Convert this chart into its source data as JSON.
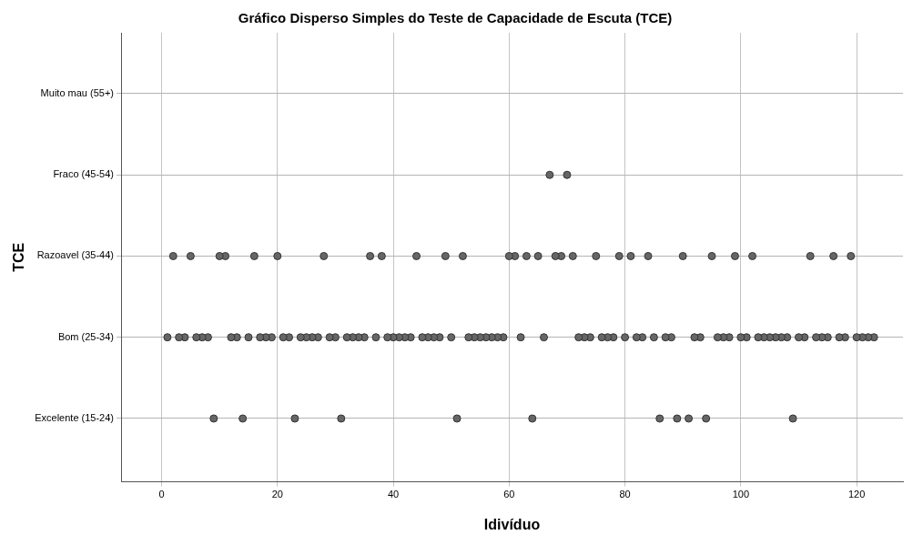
{
  "chart_data": {
    "type": "scatter",
    "orientation": "horizontal",
    "title": "Gráfico Disperso Simples do Teste de Capacidade de Escuta (TCE)",
    "xlabel": "Idivíduo",
    "ylabel": "TCE",
    "categories": [
      "Muito mau (55+)",
      "Fraco (45-54)",
      "Razoavel (35-44)",
      "Bom (25-34)",
      "Excelente (15-24)"
    ],
    "xlim": [
      -7,
      128
    ],
    "xticks": [
      0,
      20,
      40,
      60,
      80,
      100,
      120
    ],
    "grid": true,
    "legend": false,
    "marker": "circle",
    "series": [
      {
        "color": "#666666",
        "values": [
          null,
          67,
          2,
          1,
          9
        ]
      },
      {
        "color": "#666666",
        "values": [
          null,
          70,
          5,
          3,
          14
        ]
      },
      {
        "color": "#666666",
        "values": [
          null,
          null,
          10,
          4,
          23
        ]
      },
      {
        "color": "#666666",
        "values": [
          null,
          null,
          11,
          6,
          31
        ]
      },
      {
        "color": "#666666",
        "values": [
          null,
          null,
          16,
          7,
          51
        ]
      },
      {
        "color": "#666666",
        "values": [
          null,
          null,
          20,
          8,
          64
        ]
      },
      {
        "color": "#666666",
        "values": [
          null,
          null,
          28,
          12,
          86
        ]
      },
      {
        "color": "#666666",
        "values": [
          null,
          null,
          36,
          13,
          89
        ]
      },
      {
        "color": "#666666",
        "values": [
          null,
          null,
          38,
          15,
          91
        ]
      },
      {
        "color": "#666666",
        "values": [
          null,
          null,
          44,
          17,
          94
        ]
      },
      {
        "color": "#666666",
        "values": [
          null,
          null,
          49,
          18,
          109
        ]
      },
      {
        "color": "#666666",
        "values": [
          null,
          null,
          52,
          19,
          null
        ]
      },
      {
        "color": "#666666",
        "values": [
          null,
          null,
          60,
          21,
          null
        ]
      },
      {
        "color": "#666666",
        "values": [
          null,
          null,
          61,
          22,
          null
        ]
      },
      {
        "color": "#666666",
        "values": [
          null,
          null,
          63,
          24,
          null
        ]
      },
      {
        "color": "#666666",
        "values": [
          null,
          null,
          65,
          25,
          null
        ]
      },
      {
        "color": "#666666",
        "values": [
          null,
          null,
          68,
          26,
          null
        ]
      },
      {
        "color": "#666666",
        "values": [
          null,
          null,
          69,
          27,
          null
        ]
      },
      {
        "color": "#666666",
        "values": [
          null,
          null,
          71,
          29,
          null
        ]
      },
      {
        "color": "#666666",
        "values": [
          null,
          null,
          75,
          30,
          null
        ]
      },
      {
        "color": "#666666",
        "values": [
          null,
          null,
          79,
          32,
          null
        ]
      },
      {
        "color": "#666666",
        "values": [
          null,
          null,
          81,
          33,
          null
        ]
      },
      {
        "color": "#666666",
        "values": [
          null,
          null,
          84,
          34,
          null
        ]
      },
      {
        "color": "#666666",
        "values": [
          null,
          null,
          90,
          35,
          null
        ]
      },
      {
        "color": "#666666",
        "values": [
          null,
          null,
          95,
          37,
          null
        ]
      },
      {
        "color": "#666666",
        "values": [
          null,
          null,
          99,
          39,
          null
        ]
      },
      {
        "color": "#666666",
        "values": [
          null,
          null,
          102,
          40,
          null
        ]
      },
      {
        "color": "#666666",
        "values": [
          null,
          null,
          112,
          41,
          null
        ]
      },
      {
        "color": "#666666",
        "values": [
          null,
          null,
          116,
          42,
          null
        ]
      },
      {
        "color": "#666666",
        "values": [
          null,
          null,
          119,
          43,
          null
        ]
      },
      {
        "color": "#666666",
        "values": [
          null,
          null,
          null,
          45,
          null
        ]
      },
      {
        "color": "#666666",
        "values": [
          null,
          null,
          null,
          46,
          null
        ]
      },
      {
        "color": "#666666",
        "values": [
          null,
          null,
          null,
          47,
          null
        ]
      },
      {
        "color": "#666666",
        "values": [
          null,
          null,
          null,
          48,
          null
        ]
      },
      {
        "color": "#666666",
        "values": [
          null,
          null,
          null,
          50,
          null
        ]
      },
      {
        "color": "#666666",
        "values": [
          null,
          null,
          null,
          53,
          null
        ]
      },
      {
        "color": "#666666",
        "values": [
          null,
          null,
          null,
          54,
          null
        ]
      },
      {
        "color": "#666666",
        "values": [
          null,
          null,
          null,
          55,
          null
        ]
      },
      {
        "color": "#666666",
        "values": [
          null,
          null,
          null,
          56,
          null
        ]
      },
      {
        "color": "#666666",
        "values": [
          null,
          null,
          null,
          57,
          null
        ]
      },
      {
        "color": "#666666",
        "values": [
          null,
          null,
          null,
          58,
          null
        ]
      },
      {
        "color": "#666666",
        "values": [
          null,
          null,
          null,
          59,
          null
        ]
      },
      {
        "color": "#666666",
        "values": [
          null,
          null,
          null,
          62,
          null
        ]
      },
      {
        "color": "#666666",
        "values": [
          null,
          null,
          null,
          66,
          null
        ]
      },
      {
        "color": "#666666",
        "values": [
          null,
          null,
          null,
          72,
          null
        ]
      },
      {
        "color": "#666666",
        "values": [
          null,
          null,
          null,
          73,
          null
        ]
      },
      {
        "color": "#666666",
        "values": [
          null,
          null,
          null,
          74,
          null
        ]
      },
      {
        "color": "#666666",
        "values": [
          null,
          null,
          null,
          76,
          null
        ]
      },
      {
        "color": "#666666",
        "values": [
          null,
          null,
          null,
          77,
          null
        ]
      },
      {
        "color": "#666666",
        "values": [
          null,
          null,
          null,
          78,
          null
        ]
      },
      {
        "color": "#666666",
        "values": [
          null,
          null,
          null,
          80,
          null
        ]
      },
      {
        "color": "#666666",
        "values": [
          null,
          null,
          null,
          82,
          null
        ]
      },
      {
        "color": "#666666",
        "values": [
          null,
          null,
          null,
          83,
          null
        ]
      },
      {
        "color": "#666666",
        "values": [
          null,
          null,
          null,
          85,
          null
        ]
      },
      {
        "color": "#666666",
        "values": [
          null,
          null,
          null,
          87,
          null
        ]
      },
      {
        "color": "#666666",
        "values": [
          null,
          null,
          null,
          88,
          null
        ]
      },
      {
        "color": "#666666",
        "values": [
          null,
          null,
          null,
          92,
          null
        ]
      },
      {
        "color": "#666666",
        "values": [
          null,
          null,
          null,
          93,
          null
        ]
      },
      {
        "color": "#666666",
        "values": [
          null,
          null,
          null,
          96,
          null
        ]
      },
      {
        "color": "#666666",
        "values": [
          null,
          null,
          null,
          97,
          null
        ]
      },
      {
        "color": "#666666",
        "values": [
          null,
          null,
          null,
          98,
          null
        ]
      },
      {
        "color": "#666666",
        "values": [
          null,
          null,
          null,
          100,
          null
        ]
      },
      {
        "color": "#666666",
        "values": [
          null,
          null,
          null,
          101,
          null
        ]
      },
      {
        "color": "#666666",
        "values": [
          null,
          null,
          null,
          103,
          null
        ]
      },
      {
        "color": "#666666",
        "values": [
          null,
          null,
          null,
          104,
          null
        ]
      },
      {
        "color": "#666666",
        "values": [
          null,
          null,
          null,
          105,
          null
        ]
      },
      {
        "color": "#666666",
        "values": [
          null,
          null,
          null,
          106,
          null
        ]
      },
      {
        "color": "#666666",
        "values": [
          null,
          null,
          null,
          107,
          null
        ]
      },
      {
        "color": "#666666",
        "values": [
          null,
          null,
          null,
          108,
          null
        ]
      },
      {
        "color": "#666666",
        "values": [
          null,
          null,
          null,
          110,
          null
        ]
      },
      {
        "color": "#666666",
        "values": [
          null,
          null,
          null,
          111,
          null
        ]
      },
      {
        "color": "#666666",
        "values": [
          null,
          null,
          null,
          113,
          null
        ]
      },
      {
        "color": "#666666",
        "values": [
          null,
          null,
          null,
          114,
          null
        ]
      },
      {
        "color": "#666666",
        "values": [
          null,
          null,
          null,
          115,
          null
        ]
      },
      {
        "color": "#666666",
        "values": [
          null,
          null,
          null,
          117,
          null
        ]
      },
      {
        "color": "#666666",
        "values": [
          null,
          null,
          null,
          118,
          null
        ]
      },
      {
        "color": "#666666",
        "values": [
          null,
          null,
          null,
          120,
          null
        ]
      },
      {
        "color": "#666666",
        "values": [
          null,
          null,
          null,
          121,
          null
        ]
      },
      {
        "color": "#666666",
        "values": [
          null,
          null,
          null,
          122,
          null
        ]
      },
      {
        "color": "#666666",
        "values": [
          null,
          null,
          null,
          123,
          null
        ]
      }
    ]
  }
}
